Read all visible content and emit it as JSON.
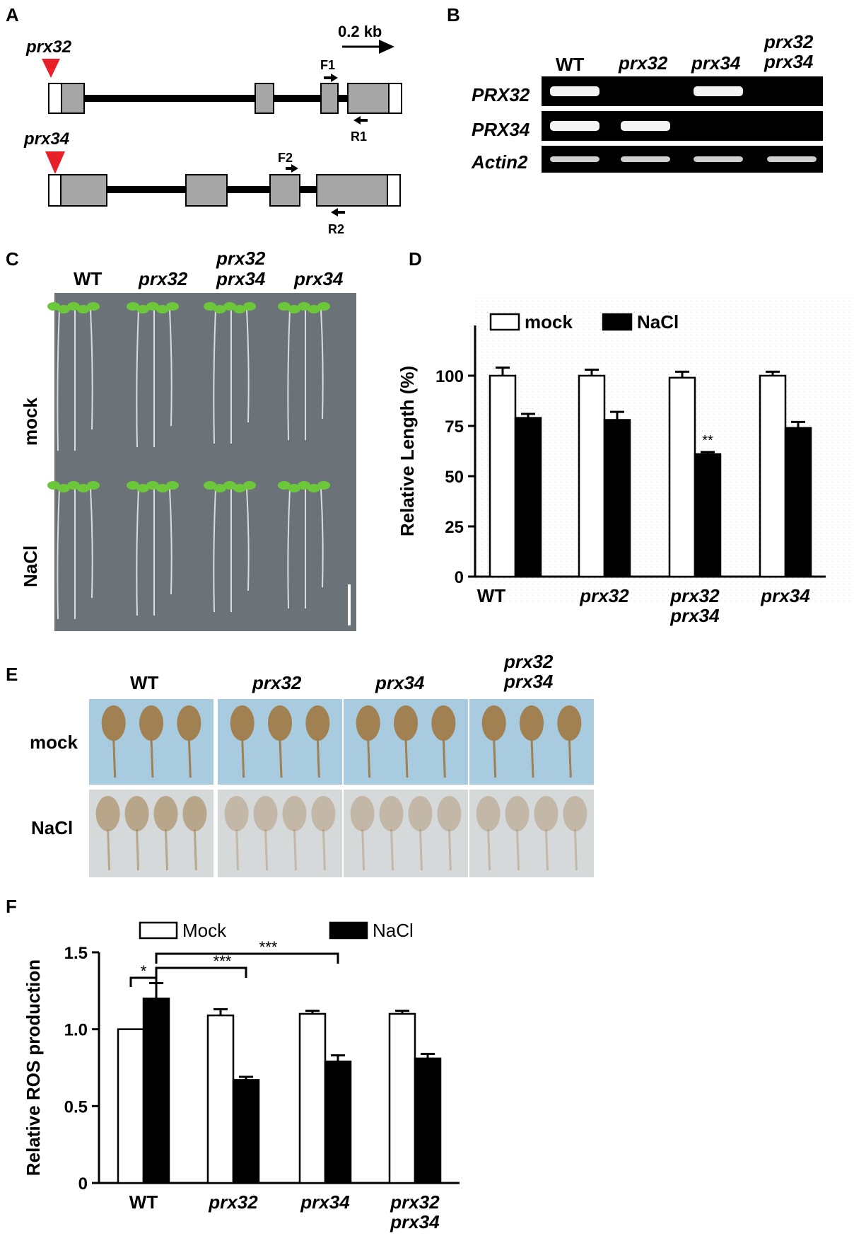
{
  "panel_a": {
    "letter": "A",
    "scale_label": "0.2 kb",
    "gene1_label": "prx32",
    "gene2_label": "prx34",
    "primer_f1": "F1",
    "primer_r1": "R1",
    "primer_f2": "F2",
    "primer_r2": "R2",
    "colors": {
      "exon": "#a6a6a6",
      "insertion": "#e8202a"
    }
  },
  "panel_b": {
    "letter": "B",
    "lanes": [
      "WT",
      "prx32",
      "prx34",
      "prx32",
      "prx34"
    ],
    "lane_double_top": "prx32",
    "lane_double_bottom": "prx34",
    "rows": [
      "PRX32",
      "PRX34",
      "Actin2"
    ],
    "bands": [
      [
        true,
        false,
        true,
        false
      ],
      [
        true,
        true,
        false,
        false
      ],
      [
        true,
        true,
        true,
        true
      ]
    ]
  },
  "panel_c": {
    "letter": "C",
    "cols": [
      "WT",
      "prx32",
      "prx34"
    ],
    "double_top": "prx32",
    "double_bottom": "prx34",
    "row_mock": "mock",
    "row_nacl": "NaCl",
    "plate_color": "#6b7278",
    "leaf_color": "#6cc83a"
  },
  "panel_e": {
    "letter": "E",
    "cols": [
      "WT",
      "prx32",
      "prx34"
    ],
    "double_top": "prx32",
    "double_bottom": "prx34",
    "row_mock": "mock",
    "row_nacl": "NaCl",
    "mock_bg": "#a9cbe0",
    "nacl_bg": "#d6d9da",
    "leaf_stain": "#a07c4a"
  },
  "chart_data": [
    {
      "panel": "D",
      "type": "bar",
      "ylabel": "Relative Length (%)",
      "ylim": [
        0,
        125
      ],
      "yticks": [
        0,
        25,
        50,
        75,
        100
      ],
      "categories": [
        "WT",
        "prx32",
        "prx32\nprx34",
        "prx34"
      ],
      "category_top": [
        "WT",
        "prx32",
        "prx32",
        "prx34"
      ],
      "category_bottom": [
        "",
        "",
        "prx34",
        ""
      ],
      "series": [
        {
          "name": "mock",
          "values": [
            100,
            100,
            99,
            100
          ],
          "errors": [
            4,
            3,
            3,
            2
          ],
          "color": "#ffffff"
        },
        {
          "name": "NaCl",
          "values": [
            79,
            78,
            61,
            74
          ],
          "errors": [
            2,
            4,
            1,
            3
          ],
          "color": "#000000"
        }
      ],
      "annotations": [
        {
          "text": "**",
          "category": 2,
          "series": "NaCl"
        }
      ],
      "legend": "top-left",
      "background": "stippled"
    },
    {
      "panel": "F",
      "type": "bar",
      "ylabel": "Relative ROS production",
      "ylim": [
        0,
        1.5
      ],
      "yticks": [
        0,
        0.5,
        1.0,
        1.5
      ],
      "ytick_labels": [
        "0",
        "0.5",
        "1.0",
        "1.5"
      ],
      "categories": [
        "WT",
        "prx32",
        "prx34",
        "prx32\nprx34"
      ],
      "category_top": [
        "WT",
        "prx32",
        "prx34",
        "prx32"
      ],
      "category_bottom": [
        "",
        "",
        "",
        "prx34"
      ],
      "series": [
        {
          "name": "Mock",
          "values": [
            1.0,
            1.09,
            1.1,
            1.1
          ],
          "errors": [
            0,
            0.04,
            0.02,
            0.02
          ],
          "color": "#ffffff"
        },
        {
          "name": "NaCl",
          "values": [
            1.2,
            0.67,
            0.79,
            0.81
          ],
          "errors": [
            0.1,
            0.02,
            0.04,
            0.03
          ],
          "color": "#000000"
        }
      ],
      "significance": [
        {
          "text": "*",
          "from": "WT Mock",
          "to": "WT NaCl"
        },
        {
          "text": "***",
          "from": "WT NaCl",
          "to": "prx32 NaCl"
        },
        {
          "text": "***",
          "from": "WT NaCl",
          "to": "prx34 NaCl"
        }
      ],
      "legend": "top"
    }
  ],
  "panel_d_letter": "D",
  "panel_f_letter": "F"
}
